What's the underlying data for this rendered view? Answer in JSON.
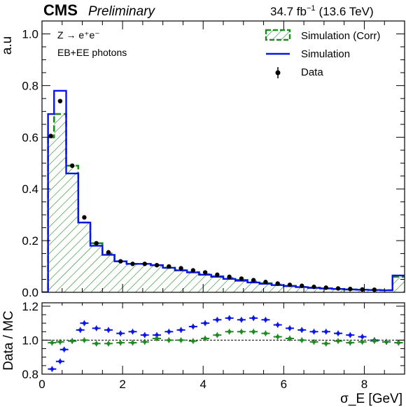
{
  "header": {
    "experiment": "CMS",
    "status": "Preliminary",
    "lumi_value": "34.7 fb",
    "lumi_exp": "−1",
    "energy": "(13.6 TeV)"
  },
  "annotations": {
    "process": "Z → e⁺e⁻",
    "selection": "EB+EE photons"
  },
  "colors": {
    "simulation": "#0a14e6",
    "simulation_corr": "#1f8a1f",
    "data": "#000000"
  },
  "chart_data": [
    {
      "type": "histogram",
      "xlabel": "σ_E [GeV]",
      "ylabel": "a.u",
      "xlim": [
        0,
        9
      ],
      "ylim": [
        0,
        1.05
      ],
      "x_ticks": [
        0,
        2,
        4,
        6,
        8
      ],
      "y_ticks": [
        0.0,
        0.2,
        0.4,
        0.6,
        0.8,
        1.0
      ],
      "y_tick_labels": [
        "0.0",
        "0.2",
        "0.4",
        "0.6",
        "0.8",
        "1.0"
      ],
      "legend_position": "top-right",
      "bin_edges": [
        0.0,
        0.15,
        0.3,
        0.6,
        0.9,
        1.2,
        1.5,
        1.8,
        2.1,
        2.4,
        2.7,
        3.0,
        3.3,
        3.6,
        3.9,
        4.2,
        4.5,
        4.8,
        5.1,
        5.4,
        5.7,
        6.0,
        6.3,
        6.6,
        6.9,
        7.2,
        7.5,
        7.8,
        8.1,
        8.4,
        8.7,
        9.0
      ],
      "series": [
        {
          "name": "Simulation (Corr)",
          "style": "hatched",
          "values": [
            0.0,
            0.6,
            0.69,
            0.49,
            0.27,
            0.19,
            0.15,
            0.12,
            0.11,
            0.11,
            0.105,
            0.095,
            0.085,
            0.078,
            0.07,
            0.062,
            0.055,
            0.048,
            0.041,
            0.035,
            0.03,
            0.025,
            0.021,
            0.018,
            0.015,
            0.013,
            0.011,
            0.01,
            0.009,
            0.008,
            0.06
          ]
        },
        {
          "name": "Simulation",
          "style": "line",
          "values": [
            0.0,
            0.69,
            0.78,
            0.46,
            0.27,
            0.18,
            0.145,
            0.12,
            0.11,
            0.11,
            0.105,
            0.095,
            0.085,
            0.077,
            0.068,
            0.06,
            0.052,
            0.045,
            0.038,
            0.033,
            0.028,
            0.024,
            0.02,
            0.017,
            0.015,
            0.013,
            0.011,
            0.01,
            0.009,
            0.008,
            0.065
          ]
        },
        {
          "name": "Data",
          "style": "points",
          "x": [
            0.22,
            0.45,
            0.75,
            1.05,
            1.35,
            1.65,
            1.95,
            2.25,
            2.55,
            2.85,
            3.15,
            3.45,
            3.75,
            4.05,
            4.35,
            4.65,
            4.95,
            5.25,
            5.55,
            5.85,
            6.15,
            6.45,
            6.75,
            7.05,
            7.35,
            7.65,
            7.95,
            8.25
          ],
          "values": [
            0.605,
            0.74,
            0.49,
            0.29,
            0.19,
            0.155,
            0.12,
            0.11,
            0.11,
            0.105,
            0.1,
            0.093,
            0.085,
            0.077,
            0.068,
            0.06,
            0.053,
            0.047,
            0.04,
            0.034,
            0.029,
            0.025,
            0.021,
            0.018,
            0.015,
            0.013,
            0.011,
            0.01
          ]
        }
      ]
    },
    {
      "type": "ratio",
      "ylabel": "Data / MC",
      "xlim": [
        0,
        9
      ],
      "ylim": [
        0.8,
        1.22
      ],
      "y_ticks": [
        0.8,
        1.0,
        1.2
      ],
      "y_tick_labels": [
        "0.8",
        "1.0",
        "1.2"
      ],
      "reference_line": 1.0,
      "series": [
        {
          "name": "Simulation",
          "x": [
            0.25,
            0.45,
            0.55,
            0.75,
            0.95,
            1.05,
            1.35,
            1.65,
            1.95,
            2.25,
            2.55,
            2.85,
            3.15,
            3.45,
            3.75,
            4.05,
            4.35,
            4.65,
            4.95,
            5.25,
            5.55,
            5.85,
            6.15,
            6.45,
            6.75,
            7.05,
            7.35,
            7.65,
            7.95,
            8.25,
            8.55,
            8.85
          ],
          "values": [
            0.83,
            0.875,
            0.945,
            0.995,
            1.06,
            1.1,
            1.07,
            1.06,
            1.04,
            1.05,
            1.03,
            1.03,
            1.05,
            1.06,
            1.08,
            1.1,
            1.12,
            1.13,
            1.12,
            1.13,
            1.12,
            1.09,
            1.07,
            1.06,
            1.05,
            1.05,
            1.04,
            1.03,
            1.02,
            1.0,
            0.99,
            0.985
          ]
        },
        {
          "name": "Simulation (Corr)",
          "x": [
            0.25,
            0.45,
            0.75,
            1.05,
            1.35,
            1.65,
            1.95,
            2.25,
            2.55,
            2.85,
            3.15,
            3.45,
            3.75,
            4.05,
            4.35,
            4.65,
            4.95,
            5.25,
            5.55,
            5.85,
            6.15,
            6.45,
            6.75,
            7.05,
            7.35,
            7.65,
            7.95,
            8.25,
            8.55,
            8.85
          ],
          "values": [
            0.985,
            0.99,
            0.995,
            1.0,
            0.98,
            0.98,
            0.985,
            0.985,
            0.99,
            1.01,
            1.0,
            1.0,
            0.995,
            1.01,
            1.03,
            1.05,
            1.05,
            1.05,
            1.04,
            1.02,
            1.01,
            1.0,
            0.99,
            0.98,
            0.995,
            0.985,
            0.99,
            0.995,
            0.99,
            0.985
          ]
        }
      ]
    }
  ]
}
